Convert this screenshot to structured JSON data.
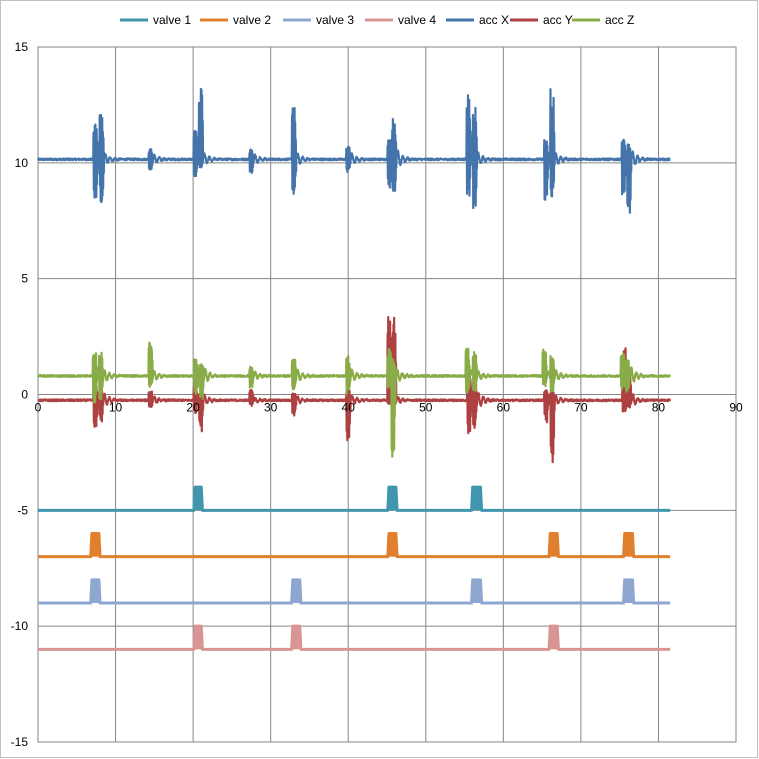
{
  "chart_data": {
    "type": "line",
    "title": "",
    "xlabel": "",
    "ylabel": "",
    "xlim": [
      0,
      90
    ],
    "ylim": [
      -15,
      15
    ],
    "x_ticks": [
      0,
      10,
      20,
      30,
      40,
      50,
      60,
      70,
      80,
      90
    ],
    "y_ticks": [
      -15,
      -10,
      -5,
      0,
      5,
      10,
      15
    ],
    "x_tick_labels": [
      "0",
      "10",
      "20",
      "30",
      "40",
      "50",
      "60",
      "70",
      "80",
      "90"
    ],
    "y_tick_labels": [
      "-15",
      "-10",
      "-5",
      "0",
      "5",
      "10",
      "15"
    ],
    "grid": true,
    "legend_position": "top",
    "x_end": 81.5,
    "series": [
      {
        "name": "valve 1",
        "kind": "pulse",
        "color": "#4196AD",
        "baseline": -5,
        "high": -4,
        "pulses": [
          [
            20.1,
            21.2
          ],
          [
            45.1,
            46.3
          ],
          [
            55.9,
            57.2
          ]
        ]
      },
      {
        "name": "valve 2",
        "kind": "pulse",
        "color": "#E0802C",
        "baseline": -7,
        "high": -6,
        "pulses": [
          [
            6.8,
            8.0
          ],
          [
            45.1,
            46.3
          ],
          [
            65.9,
            67.1
          ],
          [
            75.5,
            76.8
          ]
        ]
      },
      {
        "name": "valve 3",
        "kind": "pulse",
        "color": "#8EA6D0",
        "baseline": -9,
        "high": -8,
        "pulses": [
          [
            6.8,
            8.0
          ],
          [
            32.7,
            33.9
          ],
          [
            55.9,
            57.2
          ],
          [
            75.5,
            76.8
          ]
        ]
      },
      {
        "name": "valve 4",
        "kind": "pulse",
        "color": "#D99593",
        "baseline": -11,
        "high": -10,
        "pulses": [
          [
            20.1,
            21.2
          ],
          [
            32.7,
            33.9
          ],
          [
            65.9,
            67.1
          ]
        ]
      },
      {
        "name": "acc X",
        "kind": "signal",
        "color": "#4474AA",
        "baseline": 10.15,
        "events": [
          {
            "x": 7.4,
            "high": 11.8,
            "low": 8.3
          },
          {
            "x": 8.2,
            "high": 12.1,
            "low": 8.3
          },
          {
            "x": 14.5,
            "high": 10.6,
            "low": 9.6
          },
          {
            "x": 20.3,
            "high": 11.5,
            "low": 9.4
          },
          {
            "x": 21.0,
            "high": 13.2,
            "low": 9.8
          },
          {
            "x": 27.5,
            "high": 10.6,
            "low": 9.5
          },
          {
            "x": 33.0,
            "high": 12.4,
            "low": 8.6
          },
          {
            "x": 40.0,
            "high": 10.7,
            "low": 9.6
          },
          {
            "x": 45.3,
            "high": 11.1,
            "low": 8.9
          },
          {
            "x": 45.9,
            "high": 12.0,
            "low": 8.7
          },
          {
            "x": 55.5,
            "high": 13.1,
            "low": 8.5
          },
          {
            "x": 56.3,
            "high": 12.6,
            "low": 8.0
          },
          {
            "x": 65.5,
            "high": 11.0,
            "low": 8.3
          },
          {
            "x": 66.3,
            "high": 13.3,
            "low": 8.5
          },
          {
            "x": 75.5,
            "high": 11.0,
            "low": 8.6
          },
          {
            "x": 76.2,
            "high": 10.8,
            "low": 7.8
          }
        ]
      },
      {
        "name": "acc Y",
        "kind": "signal",
        "color": "#AD4040",
        "baseline": -0.25,
        "events": [
          {
            "x": 7.4,
            "high": 0.4,
            "low": -1.4
          },
          {
            "x": 8.1,
            "high": 0.2,
            "low": -1.2
          },
          {
            "x": 14.5,
            "high": 0.2,
            "low": -0.6
          },
          {
            "x": 20.3,
            "high": 0.3,
            "low": -0.8
          },
          {
            "x": 21.0,
            "high": 0.1,
            "low": -1.6
          },
          {
            "x": 27.5,
            "high": 0.3,
            "low": -0.5
          },
          {
            "x": 33.0,
            "high": 0.1,
            "low": -1.0
          },
          {
            "x": 40.0,
            "high": 0.2,
            "low": -2.0
          },
          {
            "x": 45.3,
            "high": 3.4,
            "low": -0.4
          },
          {
            "x": 45.9,
            "high": 3.6,
            "low": -0.5
          },
          {
            "x": 55.6,
            "high": 1.0,
            "low": -1.7
          },
          {
            "x": 56.3,
            "high": 0.7,
            "low": -1.5
          },
          {
            "x": 65.5,
            "high": 0.3,
            "low": -1.2
          },
          {
            "x": 66.3,
            "high": 0.2,
            "low": -3.1
          },
          {
            "x": 75.6,
            "high": 2.3,
            "low": -0.8
          },
          {
            "x": 76.2,
            "high": 1.2,
            "low": -0.6
          }
        ]
      },
      {
        "name": "acc Z",
        "kind": "signal",
        "color": "#8AAC48",
        "baseline": 0.8,
        "events": [
          {
            "x": 7.3,
            "high": 2.1,
            "low": -0.4
          },
          {
            "x": 8.1,
            "high": 1.9,
            "low": -0.2
          },
          {
            "x": 14.5,
            "high": 2.4,
            "low": 0.3
          },
          {
            "x": 20.4,
            "high": 1.6,
            "low": 0.0
          },
          {
            "x": 21.1,
            "high": 1.3,
            "low": -0.2
          },
          {
            "x": 27.5,
            "high": 1.2,
            "low": 0.3
          },
          {
            "x": 33.0,
            "high": 1.7,
            "low": 0.1
          },
          {
            "x": 40.0,
            "high": 1.7,
            "low": 0.0
          },
          {
            "x": 45.3,
            "high": 2.0,
            "low": 0.3
          },
          {
            "x": 45.8,
            "high": 1.6,
            "low": -2.7
          },
          {
            "x": 55.4,
            "high": 2.0,
            "low": 0.0
          },
          {
            "x": 56.3,
            "high": 1.9,
            "low": 0.1
          },
          {
            "x": 65.3,
            "high": 2.0,
            "low": 0.3
          },
          {
            "x": 66.3,
            "high": 1.7,
            "low": 0.1
          },
          {
            "x": 75.4,
            "high": 1.8,
            "low": 0.2
          },
          {
            "x": 76.0,
            "high": 1.5,
            "low": 0.1
          }
        ]
      }
    ]
  }
}
